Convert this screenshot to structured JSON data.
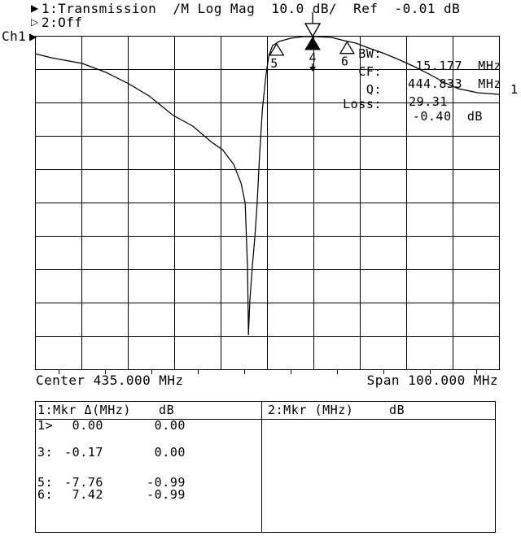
{
  "header": {
    "trace1": {
      "indicator_glyph": "▶",
      "text": "1:Transmission  /M Log Mag  10.0 dB/  Ref  -0.01 dB"
    },
    "trace2": {
      "indicator_glyph": "▷",
      "text": "2:Off"
    }
  },
  "channel": {
    "indicator_glyph": "▶",
    "label": "Ch1"
  },
  "chart_data": {
    "type": "line",
    "grid": {
      "cols": 10,
      "rows": 10,
      "minor_ticks": "bottom-half-divisions"
    },
    "x_axis": {
      "label_left": "Center 435.000 MHz",
      "label_right": "Span 100.000 MHz",
      "center_mhz": 435.0,
      "span_mhz": 100.0,
      "min_mhz": 385.0,
      "max_mhz": 485.0
    },
    "y_axis": {
      "ref_db": -0.01,
      "db_per_div": 10.0,
      "max_db": 0,
      "min_db": -100
    },
    "trace": {
      "label": "1",
      "points_mhz_db": [
        [
          385.0,
          -5.37
        ],
        [
          388.5,
          -6.59
        ],
        [
          395.2,
          -8.29
        ],
        [
          400.3,
          -10.98
        ],
        [
          405.2,
          -14.39
        ],
        [
          409.6,
          -18.05
        ],
        [
          414.8,
          -23.9
        ],
        [
          419.0,
          -27.07
        ],
        [
          423.1,
          -31.95
        ],
        [
          425.4,
          -34.15
        ],
        [
          427.8,
          -38.54
        ],
        [
          429.4,
          -44.15
        ],
        [
          430.3,
          -50.24
        ],
        [
          430.8,
          -69.76
        ],
        [
          431.0,
          -89.76
        ],
        [
          431.3,
          -79.51
        ],
        [
          431.8,
          -69.76
        ],
        [
          432.4,
          -60.0
        ],
        [
          432.9,
          -49.76
        ],
        [
          433.4,
          -35.61
        ],
        [
          434.0,
          -22.2
        ],
        [
          434.3,
          -18.05
        ],
        [
          434.8,
          -11.46
        ],
        [
          435.4,
          -5.85
        ],
        [
          436.2,
          -2.93
        ],
        [
          437.6,
          -1.71
        ],
        [
          440.1,
          -0.73
        ],
        [
          442.9,
          -0.24
        ],
        [
          445.4,
          -0.24
        ],
        [
          448.9,
          -0.49
        ],
        [
          451.7,
          -1.46
        ],
        [
          454.1,
          -2.2
        ],
        [
          456.9,
          -3.66
        ],
        [
          459.9,
          -5.12
        ],
        [
          462.9,
          -6.83
        ],
        [
          466.4,
          -9.02
        ],
        [
          469.9,
          -11.46
        ],
        [
          473.4,
          -14.15
        ],
        [
          476.2,
          -15.85
        ],
        [
          480.4,
          -17.07
        ],
        [
          485.0,
          -17.56
        ]
      ]
    },
    "markers": [
      {
        "id": "ref",
        "type": "reference",
        "freq_mhz": 444.833
      },
      {
        "id": "4",
        "type": "active",
        "label": "4",
        "freq_mhz": 444.833
      },
      {
        "id": "5",
        "type": "normal",
        "label": "5",
        "freq_mhz": 437.073
      },
      {
        "id": "6",
        "type": "normal",
        "label": "6",
        "freq_mhz": 452.253
      }
    ],
    "readouts": [
      {
        "label": "BW:",
        "value": "15.177  MHz"
      },
      {
        "label": "CF:",
        "value": "444.833  MHz"
      },
      {
        "label": "Q:",
        "value": "29.31"
      },
      {
        "label": "Loss:",
        "value": "-0.40  dB"
      }
    ]
  },
  "marker_table": {
    "left": {
      "title": "1:Mkr Δ(MHz)",
      "col2_header": "dB",
      "rows": [
        {
          "label": "1>",
          "freq": "0.00",
          "db": "0.00"
        },
        {
          "label": "3:",
          "freq": "-0.17",
          "db": "0.00"
        },
        {
          "label": "5:",
          "freq": "-7.76",
          "db": "-0.99"
        },
        {
          "label": "6:",
          "freq": "7.42",
          "db": "-0.99"
        }
      ]
    },
    "right": {
      "title": "2:Mkr (MHz)",
      "col2_header": "dB",
      "rows": []
    }
  }
}
